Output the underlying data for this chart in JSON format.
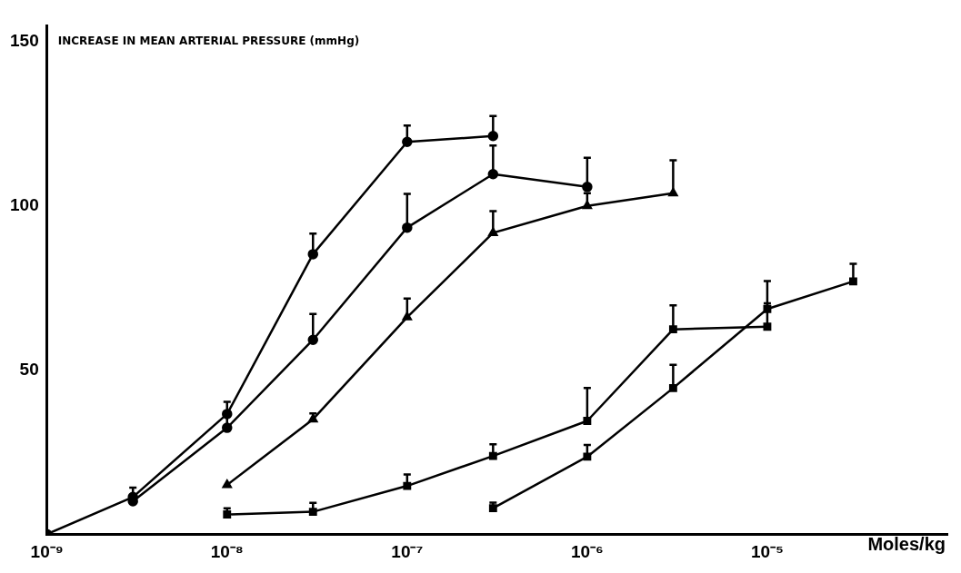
{
  "chart_data": {
    "type": "line",
    "ylabel": "INCREASE IN MEAN ARTERIAL PRESSURE (mmHg)",
    "xlabel": "Moles/kg",
    "log": "x",
    "grid": false,
    "legend": false,
    "xlim": [
      1e-09,
      0.0001
    ],
    "xticks": [
      {
        "value": 1e-09,
        "label": "10⁻⁹"
      },
      {
        "value": 1e-08,
        "label": "10⁻⁸"
      },
      {
        "value": 1e-07,
        "label": "10⁻⁷"
      },
      {
        "value": 1e-06,
        "label": "10⁻⁶"
      },
      {
        "value": 1e-05,
        "label": "10⁻⁵"
      }
    ],
    "ylim": [
      0,
      155
    ],
    "yticks": [
      50,
      100,
      150
    ],
    "line_style": "solid",
    "series": [
      {
        "color": "#000000",
        "marker": "circle",
        "x": [
          1e-09,
          3e-09,
          1e-08,
          3e-08,
          1e-07,
          3e-07
        ],
        "values": [
          0,
          11.3,
          36.6,
          85.3,
          119.5,
          121.3
        ],
        "errors": [
          null,
          [
            11.3,
            14.2
          ],
          [
            36.6,
            40.3
          ],
          [
            85.3,
            91.6
          ],
          [
            119.5,
            124.5
          ],
          [
            121.3,
            127.4
          ]
        ]
      },
      {
        "color": "#000000",
        "marker": "circle",
        "x": [
          3e-09,
          1e-08,
          3e-08,
          1e-07,
          3e-07,
          1e-06
        ],
        "values": [
          10.0,
          32.4,
          59.2,
          93.4,
          109.7,
          105.8
        ],
        "errors": [
          null,
          [
            32.4,
            37.1
          ],
          [
            59.2,
            67.1
          ],
          [
            93.4,
            103.7
          ],
          [
            109.7,
            118.4
          ],
          [
            105.8,
            114.7
          ]
        ]
      },
      {
        "color": "#000000",
        "marker": "triangle",
        "x": [
          1e-08,
          3e-08,
          1e-07,
          3e-07,
          1e-06,
          3e-06
        ],
        "values": [
          15.0,
          35.0,
          66.1,
          91.8,
          100.0,
          103.9
        ],
        "errors": [
          null,
          [
            35.0,
            36.8
          ],
          [
            66.1,
            71.8
          ],
          [
            91.8,
            98.4
          ],
          [
            100.0,
            103.9
          ],
          [
            103.9,
            113.9
          ]
        ]
      },
      {
        "color": "#000000",
        "marker": "square",
        "x": [
          1e-08,
          3e-08,
          1e-07,
          3e-07,
          1e-06,
          3e-06,
          1e-05
        ],
        "values": [
          6.0,
          6.8,
          14.7,
          23.8,
          34.5,
          62.4,
          63.2
        ],
        "errors": [
          [
            6.0,
            7.9
          ],
          [
            6.8,
            9.5
          ],
          [
            14.7,
            18.2
          ],
          [
            23.8,
            27.4
          ],
          [
            34.5,
            44.5
          ],
          [
            62.4,
            69.7
          ],
          [
            63.2,
            70.3
          ]
        ]
      },
      {
        "color": "#000000",
        "marker": "square",
        "x": [
          3e-07,
          1e-06,
          3e-06,
          1e-05,
          3e-05
        ],
        "values": [
          7.9,
          23.6,
          44.5,
          68.6,
          77.0
        ],
        "errors": [
          [
            7.9,
            9.6
          ],
          [
            23.6,
            27.2
          ],
          [
            44.5,
            51.6
          ],
          [
            68.6,
            77.1
          ],
          [
            77.0,
            82.4
          ]
        ]
      }
    ]
  }
}
